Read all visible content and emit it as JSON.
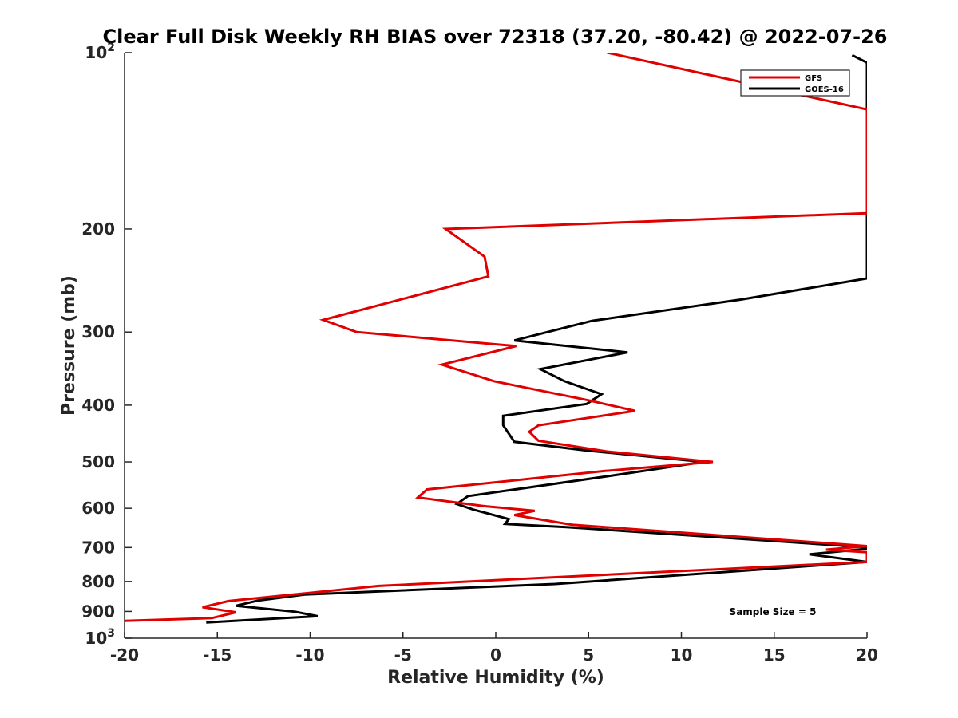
{
  "chart_data": {
    "type": "line",
    "title": "Clear Full Disk Weekly RH BIAS over 72318 (37.20, -80.42) @ 2022-07-26",
    "xlabel": "Relative Humidity (%)",
    "ylabel": "Pressure (mb)",
    "xlim": [
      -20,
      20
    ],
    "ylim": [
      100,
      1000
    ],
    "y_scale": "log",
    "y_reversed": true,
    "x_ticks": [
      "-20",
      "-15",
      "-10",
      "-5",
      "0",
      "5",
      "10",
      "15",
      "20"
    ],
    "y_ticks": [
      {
        "value": 100,
        "base": "10",
        "exp": "2"
      },
      {
        "value": 200,
        "label": "200"
      },
      {
        "value": 300,
        "label": "300"
      },
      {
        "value": 400,
        "label": "400"
      },
      {
        "value": 500,
        "label": "500"
      },
      {
        "value": 600,
        "label": "600"
      },
      {
        "value": 700,
        "label": "700"
      },
      {
        "value": 800,
        "label": "800"
      },
      {
        "value": 900,
        "label": "900"
      },
      {
        "value": 1000,
        "base": "10",
        "exp": "3"
      }
    ],
    "grid": false,
    "legend_position": "top-right",
    "annotation": "Sample Size = 5",
    "series": [
      {
        "name": "GFS",
        "color": "#e00000",
        "points": [
          [
            6,
            100
          ],
          [
            20,
            125
          ],
          [
            20,
            188
          ],
          [
            -2.7,
            200
          ],
          [
            -0.6,
            223
          ],
          [
            -0.4,
            241
          ],
          [
            -9.3,
            286
          ],
          [
            -7.5,
            300
          ],
          [
            1.1,
            317
          ],
          [
            -2.9,
            341
          ],
          [
            -0.1,
            364
          ],
          [
            5.1,
            393
          ],
          [
            7.5,
            409
          ],
          [
            2.3,
            433
          ],
          [
            1.8,
            444
          ],
          [
            2.3,
            460
          ],
          [
            6,
            480
          ],
          [
            11.7,
            500
          ],
          [
            5.9,
            518
          ],
          [
            -3.7,
            557
          ],
          [
            -4.2,
            575
          ],
          [
            -0.6,
            595
          ],
          [
            2.1,
            606
          ],
          [
            1,
            616
          ],
          [
            4.1,
            640
          ],
          [
            20,
            696
          ],
          [
            17.8,
            706
          ],
          [
            20,
            713
          ],
          [
            20,
            741
          ],
          [
            -6.3,
            814
          ],
          [
            -14.4,
            864
          ],
          [
            -15.8,
            885
          ],
          [
            -14,
            903
          ],
          [
            -15.3,
            924
          ],
          [
            -20,
            934
          ]
        ]
      },
      {
        "name": "GOES-16",
        "color": "#000000",
        "points": [
          [
            19.2,
            101
          ],
          [
            20,
            104
          ],
          [
            20,
            243
          ],
          [
            13.2,
            264
          ],
          [
            5.2,
            287
          ],
          [
            1,
            310
          ],
          [
            7.1,
            325
          ],
          [
            2.4,
            347
          ],
          [
            3.7,
            364
          ],
          [
            5.7,
            383
          ],
          [
            4.9,
            398
          ],
          [
            0.4,
            417
          ],
          [
            0.4,
            433
          ],
          [
            1,
            462
          ],
          [
            4.9,
            478
          ],
          [
            11.2,
            500
          ],
          [
            6.2,
            528
          ],
          [
            -1.5,
            572
          ],
          [
            -2.1,
            590
          ],
          [
            -1.2,
            603
          ],
          [
            0.7,
            626
          ],
          [
            0.5,
            638
          ],
          [
            3.8,
            646
          ],
          [
            20.5,
            701
          ],
          [
            16.9,
            719
          ],
          [
            20,
            741
          ],
          [
            3.2,
            808
          ],
          [
            -10.3,
            842
          ],
          [
            -12.8,
            862
          ],
          [
            -14,
            880
          ],
          [
            -10.8,
            901
          ],
          [
            -9.6,
            917
          ],
          [
            -15.6,
            940
          ]
        ]
      }
    ]
  }
}
